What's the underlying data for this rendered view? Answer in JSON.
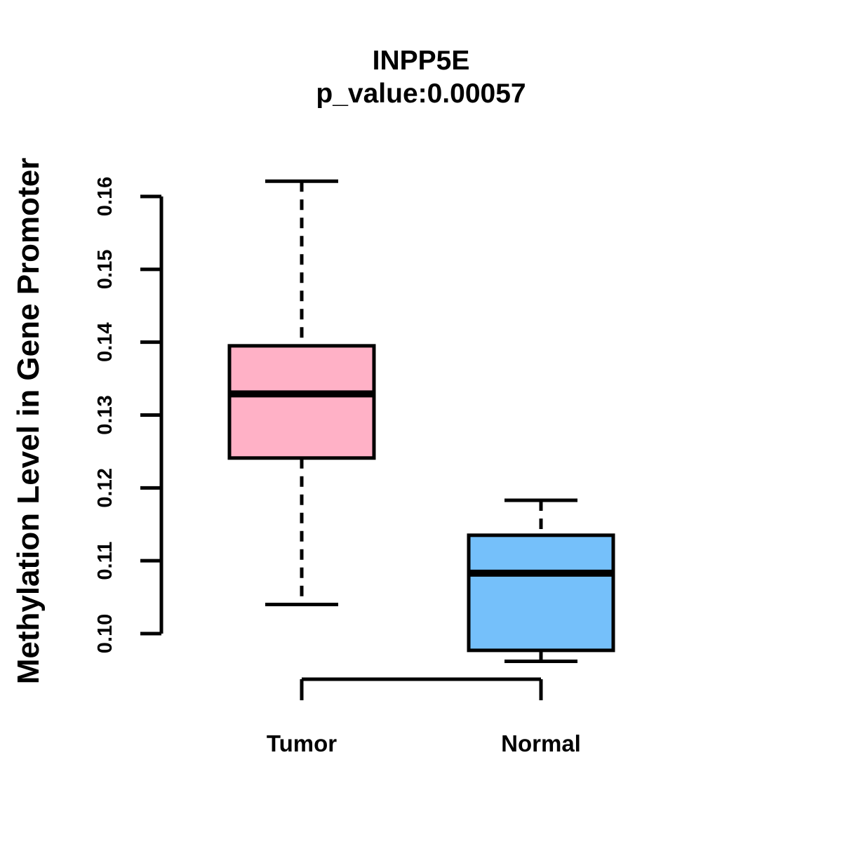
{
  "page": {
    "background_color": "#ffffff",
    "text_color": "#000000"
  },
  "chart_data": {
    "type": "boxplot",
    "title": "INPP5E",
    "subtitle": "p_value:0.00057",
    "ylabel": "Methylation Level in Gene Promoter",
    "xlabel": "",
    "categories": [
      "Tumor",
      "Normal"
    ],
    "y_axis": {
      "min": 0.1,
      "max": 0.16,
      "ticks": [
        "0.10",
        "0.11",
        "0.12",
        "0.13",
        "0.14",
        "0.15",
        "0.16"
      ]
    },
    "series": [
      {
        "name": "Tumor",
        "fill_color": "#FFB1C6",
        "whisker_low": 0.104,
        "q1": 0.1241,
        "median": 0.1329,
        "q3": 0.1395,
        "whisker_high": 0.1621
      },
      {
        "name": "Normal",
        "fill_color": "#75C0FA",
        "whisker_low": 0.0962,
        "q1": 0.0977,
        "median": 0.1083,
        "q3": 0.1135,
        "whisker_high": 0.1183
      }
    ],
    "style": {
      "stroke_color": "#000000",
      "whisker_line_style": "dashed",
      "legend": "none",
      "grid": "off"
    }
  }
}
